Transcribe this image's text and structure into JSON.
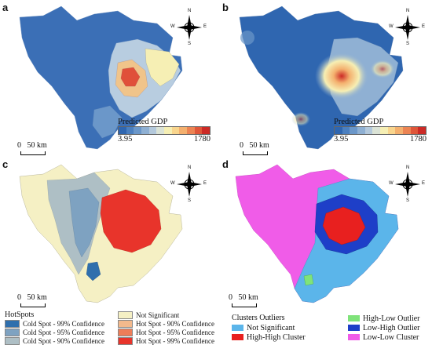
{
  "panels": {
    "a": {
      "label": "a"
    },
    "b": {
      "label": "b"
    },
    "c": {
      "label": "c"
    },
    "d": {
      "label": "d"
    }
  },
  "scalebar": {
    "text": "50 km",
    "zero": "0"
  },
  "compass": {
    "n": "N",
    "s": "S",
    "e": "E",
    "w": "W"
  },
  "gdp_legend": {
    "title": "Predicted GDP",
    "min": "3.95",
    "max": "1780",
    "ramp_colors": [
      "#2f66b0",
      "#4b7fbf",
      "#6b97c9",
      "#8fb0d3",
      "#b4c9dc",
      "#dbe3d6",
      "#f6efb4",
      "#f9d58d",
      "#f4b06e",
      "#ec8453",
      "#df5639",
      "#cc2a26"
    ]
  },
  "hotspots_legend": {
    "title": "HotSpots",
    "items": [
      {
        "label": "Cold Spot - 99% Confidence",
        "color": "#2f6fad"
      },
      {
        "label": "Cold Spot - 95% Confidence",
        "color": "#7ea2c1"
      },
      {
        "label": "Cold Spot - 90% Confidence",
        "color": "#aebfc5"
      },
      {
        "label": "Not Significant",
        "color": "#f5f0c4"
      },
      {
        "label": "Hot Spot - 90% Confidence",
        "color": "#f3b98c"
      },
      {
        "label": "Hot Spot - 95% Confidence",
        "color": "#ee7d58"
      },
      {
        "label": "Hot Spot - 99% Confidence",
        "color": "#e8342b"
      }
    ]
  },
  "clusters_legend": {
    "title": "Clusters Outliers",
    "items": [
      {
        "label": "Not Significant",
        "color": "#5bb5ea"
      },
      {
        "label": "High-High Cluster",
        "color": "#e8201f"
      },
      {
        "label": "High-Low Outlier",
        "color": "#7fe37a"
      },
      {
        "label": "Low-High Outlier",
        "color": "#1e3fc8"
      },
      {
        "label": "Low-Low Cluster",
        "color": "#f05ce8"
      }
    ]
  }
}
